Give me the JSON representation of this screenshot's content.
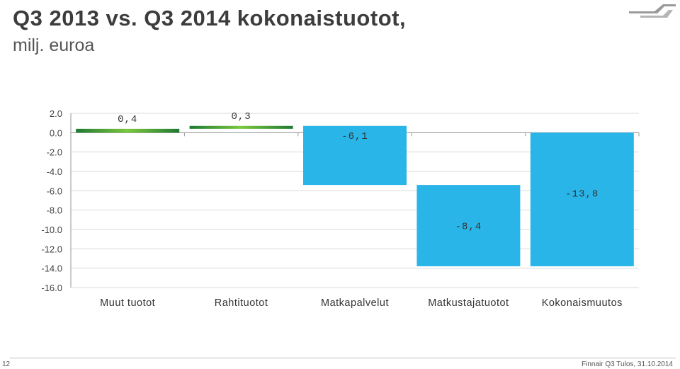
{
  "slide": {
    "title": "Q3 2013 vs. Q3 2014 kokonaistuotot,",
    "subtitle": "milj. euroa",
    "page_number": "12",
    "footer": "Finnair Q3 Tulos, 31.10.2014",
    "logo_icon": "finnair-wing-logo-icon"
  },
  "chart_data": {
    "type": "bar",
    "subtype": "waterfall",
    "categories": [
      "Muut tuotot",
      "Rahtituotot",
      "Matkapalvelut",
      "Matkustajatuotot",
      "Kokonaismuutos"
    ],
    "values": [
      0.4,
      0.3,
      -6.1,
      -8.4,
      -13.8
    ],
    "data_labels": [
      "0,4",
      "0,3",
      "-6,1",
      "-8,4",
      "-13,8"
    ],
    "ylim": [
      -16,
      2
    ],
    "y_ticks": [
      2.0,
      0.0,
      -2.0,
      -4.0,
      -6.0,
      -8.0,
      -10.0,
      -12.0,
      -14.0,
      -16.0
    ],
    "y_tick_labels": [
      "2.0",
      "0.0",
      "-2.0",
      "-4.0",
      "-6.0",
      "-8.0",
      "-10.0",
      "-12.0",
      "-14.0",
      "-16.0"
    ],
    "grid": true,
    "colors": {
      "positive": "#2e8b3e",
      "negative": "#29b5e8",
      "grid": "#d9d9d9",
      "axis": "#999999"
    }
  }
}
